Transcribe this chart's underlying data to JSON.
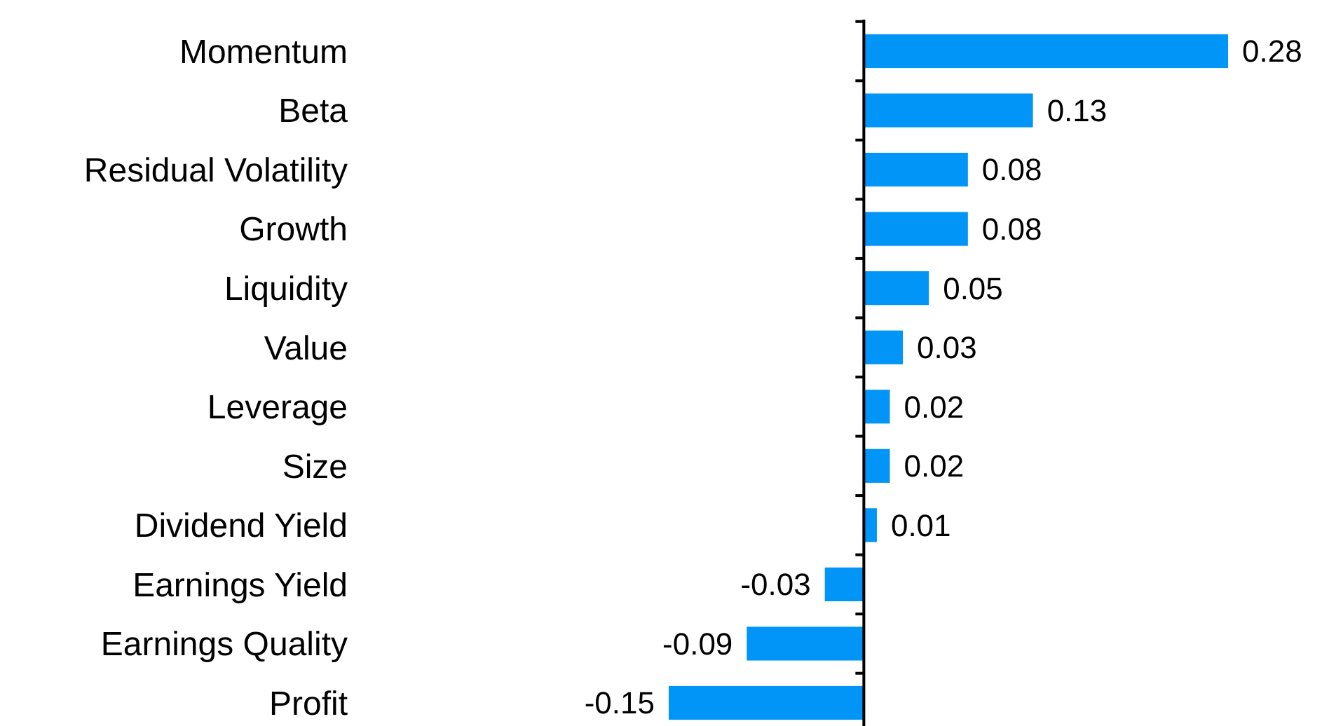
{
  "chart_data": {
    "type": "bar",
    "orientation": "horizontal",
    "data_labels": true,
    "color": "#0095f7",
    "categories": [
      "Momentum",
      "Beta",
      "Residual Volatility",
      "Growth",
      "Liquidity",
      "Value",
      "Leverage",
      "Size",
      "Dividend Yield",
      "Earnings Yield",
      "Earnings Quality",
      "Profit"
    ],
    "values": [
      0.28,
      0.13,
      0.08,
      0.08,
      0.05,
      0.03,
      0.02,
      0.02,
      0.01,
      -0.03,
      -0.09,
      -0.15
    ]
  }
}
